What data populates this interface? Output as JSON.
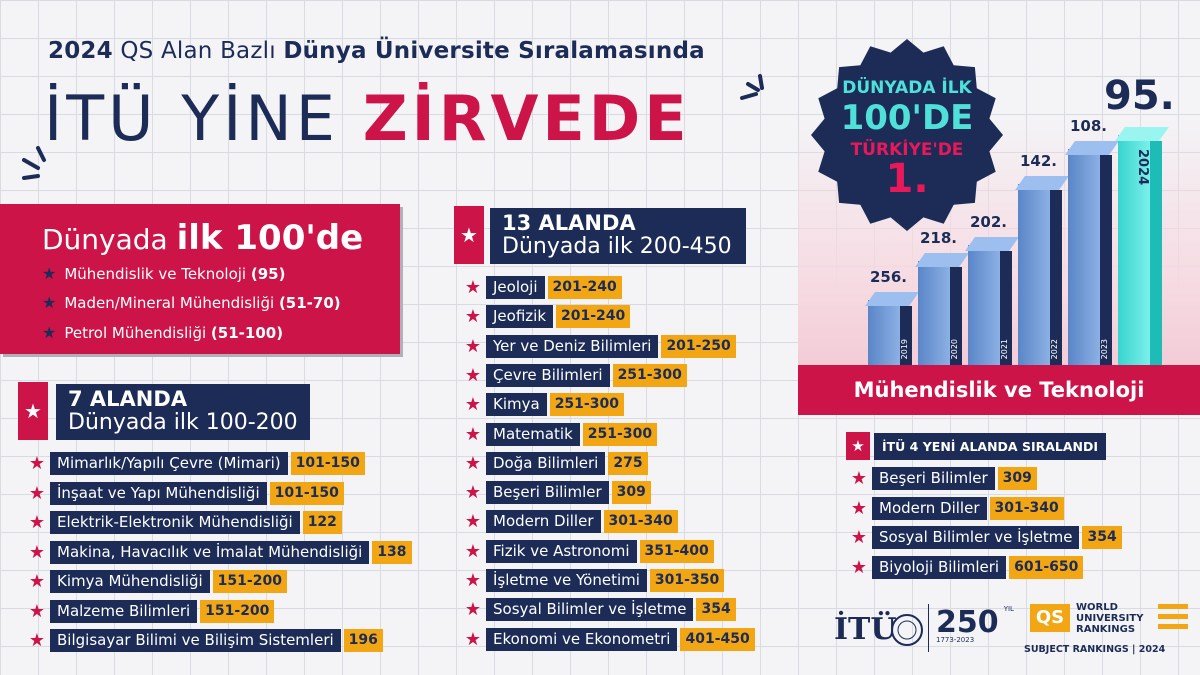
{
  "header": {
    "line1_year": "2024",
    "line1_mid": "QS Alan Bazlı",
    "line1_end": "Dünya Üniversite Sıralamasında",
    "line2_a": "İTÜ YİNE",
    "line2_b": "ZİRVEDE"
  },
  "top100": {
    "title_a": "Dünyada",
    "title_b": "ilk 100'de",
    "items": [
      {
        "name": "Mühendislik ve Teknoloji",
        "rank": "(95)"
      },
      {
        "name": "Maden/Mineral Mühendisliği",
        "rank": "(51-70)"
      },
      {
        "name": "Petrol Mühendisliği",
        "rank": "(51-100)"
      }
    ]
  },
  "group7": {
    "title": "7 ALANDA",
    "subtitle": "Dünyada ilk 100-200",
    "items": [
      {
        "name": "Mimarlık/Yapılı Çevre (Mimari)",
        "rank": "101-150"
      },
      {
        "name": "İnşaat ve Yapı Mühendisliği",
        "rank": "101-150"
      },
      {
        "name": "Elektrik-Elektronik Mühendisliği",
        "rank": "122"
      },
      {
        "name": "Makina, Havacılık ve İmalat Mühendisliği",
        "rank": "138"
      },
      {
        "name": "Kimya Mühendisliği",
        "rank": "151-200"
      },
      {
        "name": "Malzeme Bilimleri",
        "rank": "151-200"
      },
      {
        "name": "Bilgisayar Bilimi ve Bilişim Sistemleri",
        "rank": "196"
      }
    ]
  },
  "group13": {
    "title": "13 ALANDA",
    "subtitle": "Dünyada ilk 200-450",
    "items": [
      {
        "name": "Jeoloji",
        "rank": "201-240"
      },
      {
        "name": "Jeofizik",
        "rank": "201-240"
      },
      {
        "name": "Yer ve Deniz Bilimleri",
        "rank": "201-250"
      },
      {
        "name": "Çevre Bilimleri",
        "rank": "251-300"
      },
      {
        "name": "Kimya",
        "rank": "251-300"
      },
      {
        "name": "Matematik",
        "rank": "251-300"
      },
      {
        "name": "Doğa Bilimleri",
        "rank": "275"
      },
      {
        "name": "Beşeri Bilimler",
        "rank": "309"
      },
      {
        "name": "Modern Diller",
        "rank": "301-340"
      },
      {
        "name": "Fizik ve Astronomi",
        "rank": "351-400"
      },
      {
        "name": "İşletme ve Yönetimi",
        "rank": "301-350"
      },
      {
        "name": "Sosyal Bilimler ve İşletme",
        "rank": "354"
      },
      {
        "name": "Ekonomi ve Ekonometri",
        "rank": "401-450"
      }
    ]
  },
  "new4": {
    "title": "İTÜ 4 YENİ ALANDA SIRALANDI",
    "items": [
      {
        "name": "Beşeri Bilimler",
        "rank": "309"
      },
      {
        "name": "Modern Diller",
        "rank": "301-340"
      },
      {
        "name": "Sosyal Bilimler ve İşletme",
        "rank": "354"
      },
      {
        "name": "Biyoloji Bilimleri",
        "rank": "601-650"
      }
    ]
  },
  "badge": {
    "line1": "DÜNYADA İLK",
    "line2": "100'DE",
    "line3": "TÜRKİYE'DE",
    "line4": "1."
  },
  "chart_data": {
    "type": "bar",
    "categories": [
      "2019",
      "2020",
      "2021",
      "2022",
      "2023",
      "2024"
    ],
    "values": [
      256,
      218,
      202,
      142,
      108,
      95
    ],
    "labels": [
      "256.",
      "218.",
      "202.",
      "142.",
      "108.",
      "95."
    ],
    "title": "Mühendislik ve Teknoloji",
    "highlight": "2024",
    "colors": {
      "bar": "#6f98d6",
      "highlight": "#4fe0da",
      "side": "#1c2c57"
    }
  },
  "logos": {
    "itu": "İTÜ",
    "anniv": "250",
    "anniv_sub": "YIL",
    "anniv_years": "1773-2023",
    "qs": "QS",
    "qs_l1": "WORLD",
    "qs_l2": "UNIVERSITY",
    "qs_l3": "RANKINGS",
    "qs_sub": "SUBJECT RANKINGS | 2024"
  },
  "colors": {
    "navy": "#1c2c57",
    "crimson": "#cc1449",
    "orange": "#f2a614",
    "teal": "#4fe0da"
  }
}
